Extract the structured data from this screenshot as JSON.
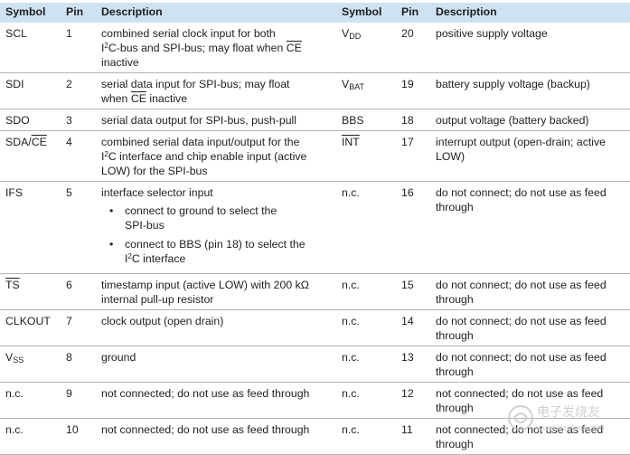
{
  "header": {
    "symbol": "Symbol",
    "pin": "Pin",
    "description": "Description",
    "symbol2": "Symbol",
    "pin2": "Pin",
    "description2": "Description"
  },
  "rows": [
    {
      "left": {
        "sym": "SCL",
        "pin": "1",
        "d1": "combined serial clock input for both",
        "d2_sup": "2",
        "d2a": "I",
        "d2b": "C-bus and SPI-bus; may float when ",
        "d2_ol": "CE",
        "d3": "inactive"
      },
      "right": {
        "sym_main": "V",
        "sym_sub": "DD",
        "pin": "20",
        "d1": "positive supply voltage"
      }
    },
    {
      "left": {
        "sym": "SDI",
        "pin": "2",
        "d1": "serial data input for SPI-bus; may float",
        "d2a": "when ",
        "d2_ol": "CE",
        "d2b": " inactive"
      },
      "right": {
        "sym_main": "V",
        "sym_sub": "BAT",
        "pin": "19",
        "d1": "battery supply voltage (backup)"
      }
    },
    {
      "left": {
        "sym": "SDO",
        "pin": "3",
        "d1": "serial data output for SPI-bus, push-pull"
      },
      "right": {
        "sym": "BBS",
        "pin": "18",
        "d1": "output voltage (battery backed)"
      }
    },
    {
      "left": {
        "sym_a": "SDA/",
        "sym_ol": "CE",
        "pin": "4",
        "d1": "combined serial data input/output for the",
        "d2a": "I",
        "d2_sup": "2",
        "d2b": "C interface and chip enable input (active",
        "d3": "LOW) for the SPI-bus"
      },
      "right": {
        "sym_ol": "INT",
        "pin": "17",
        "d1": "interrupt output (open-drain; active",
        "d2": "LOW)"
      }
    },
    {
      "left": {
        "sym": "IFS",
        "pin": "5",
        "d1": "interface selector input",
        "b1a": "connect to ground to select the",
        "b1b": "SPI-bus",
        "b2a": "connect to BBS (pin 18) to select the",
        "b2b_a": "I",
        "b2b_sup": "2",
        "b2b_b": "C interface"
      },
      "right": {
        "sym": "n.c.",
        "pin": "16",
        "d1": "do not connect; do not use as feed",
        "d2": "through"
      }
    },
    {
      "left": {
        "sym_ol": "TS",
        "pin": "6",
        "d1": "timestamp input (active LOW) with 200 kΩ",
        "d2": "internal pull-up resistor"
      },
      "right": {
        "sym": "n.c.",
        "pin": "15",
        "d1": "do not connect; do not use as feed",
        "d2": "through"
      }
    },
    {
      "left": {
        "sym": "CLKOUT",
        "pin": "7",
        "d1": "clock output (open drain)"
      },
      "right": {
        "sym": "n.c.",
        "pin": "14",
        "d1": "do not connect; do not use as feed",
        "d2": "through"
      }
    },
    {
      "left": {
        "sym_main": "V",
        "sym_sub": "SS",
        "pin": "8",
        "d1": "ground"
      },
      "right": {
        "sym": "n.c.",
        "pin": "13",
        "d1": "do not connect; do not use as feed",
        "d2": "through"
      }
    },
    {
      "left": {
        "sym": "n.c.",
        "pin": "9",
        "d1": "not connected; do not use as feed through"
      },
      "right": {
        "sym": "n.c.",
        "pin": "12",
        "d1": "not connected; do not use as feed",
        "d2": "through"
      }
    },
    {
      "left": {
        "sym": "n.c.",
        "pin": "10",
        "d1": "not connected; do not use as feed through"
      },
      "right": {
        "sym": "n.c.",
        "pin": "11",
        "d1": "not connected; do not use as feed",
        "d2": "through"
      }
    }
  ],
  "watermark": {
    "text": "电子发烧友",
    "url": "www.elecfans.com"
  },
  "colors": {
    "header_bg": "#cfe2f3",
    "rule": "#b4b4b4",
    "text": "#1e1e1e"
  }
}
